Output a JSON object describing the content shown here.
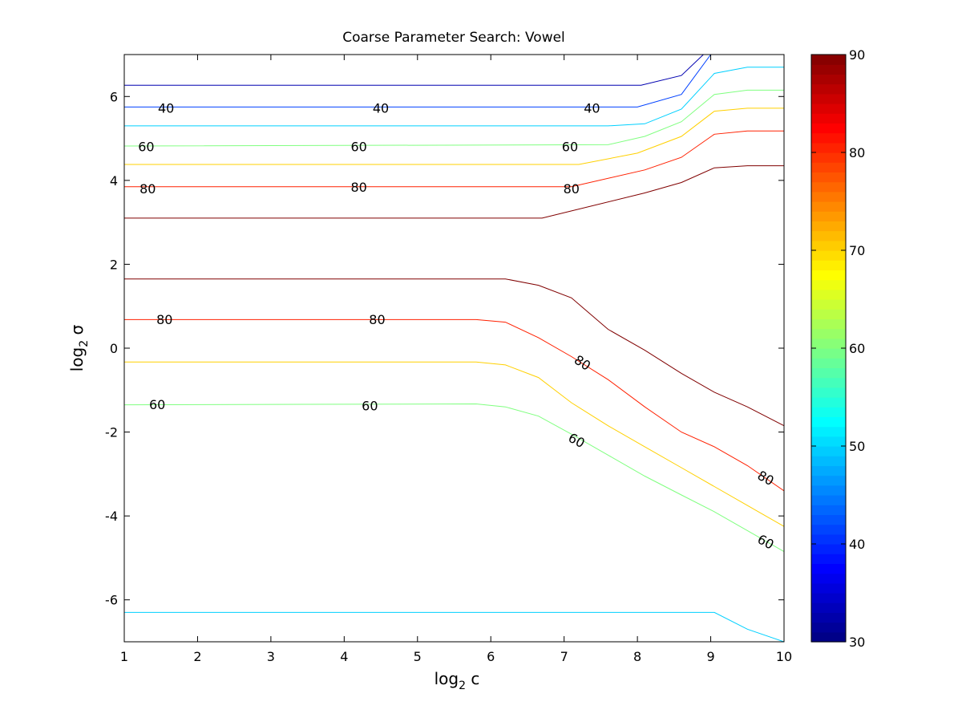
{
  "chart_data": {
    "type": "contour",
    "title": "Coarse Parameter Search: Vowel",
    "xlabel": {
      "text": "log",
      "sub": "2",
      "tail": " c"
    },
    "ylabel": {
      "text": "log",
      "sub": "2",
      "tail": " σ"
    },
    "xlim": [
      1,
      10
    ],
    "ylim": [
      -7,
      7
    ],
    "x_ticks": [
      1,
      2,
      3,
      4,
      5,
      6,
      7,
      8,
      9,
      10
    ],
    "y_ticks": [
      -6,
      -4,
      -2,
      0,
      2,
      4,
      6
    ],
    "grid": false,
    "colormap": "jet",
    "colorbar": {
      "range": [
        30,
        90
      ],
      "ticks": [
        30,
        40,
        50,
        60,
        70,
        80,
        90
      ],
      "levels": 60
    },
    "contours": [
      {
        "level": 37,
        "color": "#0000b0",
        "points": [
          [
            1,
            6.27
          ],
          [
            8.05,
            6.27
          ],
          [
            8.6,
            6.5
          ],
          [
            8.9,
            7.0
          ]
        ]
      },
      {
        "level": 40,
        "color": "#0040ff",
        "points": [
          [
            1,
            5.75
          ],
          [
            8.0,
            5.75
          ],
          [
            8.6,
            6.05
          ],
          [
            9.0,
            7.0
          ]
        ]
      },
      {
        "level": 50,
        "color": "#00d0ff",
        "points": [
          [
            1,
            5.3
          ],
          [
            7.6,
            5.3
          ],
          [
            8.1,
            5.35
          ],
          [
            8.6,
            5.7
          ],
          [
            9.05,
            6.55
          ],
          [
            9.5,
            6.7
          ],
          [
            10,
            6.7
          ]
        ]
      },
      {
        "level": 60,
        "color": "#80ff80",
        "points": [
          [
            1,
            4.82
          ],
          [
            7.6,
            4.85
          ],
          [
            8.1,
            5.05
          ],
          [
            8.6,
            5.4
          ],
          [
            9.05,
            6.05
          ],
          [
            9.5,
            6.15
          ],
          [
            10,
            6.15
          ]
        ]
      },
      {
        "level": 70,
        "color": "#ffd000",
        "points": [
          [
            1,
            4.38
          ],
          [
            7.2,
            4.38
          ],
          [
            8.0,
            4.65
          ],
          [
            8.6,
            5.05
          ],
          [
            9.05,
            5.65
          ],
          [
            9.5,
            5.72
          ],
          [
            10,
            5.72
          ]
        ]
      },
      {
        "level": 80,
        "color": "#ff2000",
        "points": [
          [
            1,
            3.85
          ],
          [
            7.1,
            3.85
          ],
          [
            8.1,
            4.25
          ],
          [
            8.6,
            4.55
          ],
          [
            9.05,
            5.1
          ],
          [
            9.5,
            5.18
          ],
          [
            10,
            5.18
          ]
        ]
      },
      {
        "level": 87,
        "color": "#800000",
        "points": [
          [
            1,
            3.1
          ],
          [
            6.7,
            3.1
          ],
          [
            8.1,
            3.7
          ],
          [
            8.6,
            3.95
          ],
          [
            9.05,
            4.3
          ],
          [
            9.5,
            4.35
          ],
          [
            10,
            4.35
          ]
        ]
      },
      {
        "level": 87,
        "color": "#800000",
        "points": [
          [
            1,
            1.65
          ],
          [
            6.2,
            1.65
          ],
          [
            6.65,
            1.5
          ],
          [
            7.1,
            1.2
          ],
          [
            7.6,
            0.45
          ],
          [
            8.1,
            -0.05
          ],
          [
            8.6,
            -0.6
          ],
          [
            9.05,
            -1.05
          ],
          [
            9.5,
            -1.4
          ],
          [
            10,
            -1.85
          ]
        ]
      },
      {
        "level": 80,
        "color": "#ff2000",
        "points": [
          [
            1,
            0.68
          ],
          [
            5.8,
            0.68
          ],
          [
            6.2,
            0.62
          ],
          [
            6.65,
            0.25
          ],
          [
            7.1,
            -0.2
          ],
          [
            7.6,
            -0.75
          ],
          [
            8.1,
            -1.4
          ],
          [
            8.6,
            -2.0
          ],
          [
            9.05,
            -2.35
          ],
          [
            9.5,
            -2.8
          ],
          [
            10,
            -3.4
          ]
        ]
      },
      {
        "level": 70,
        "color": "#ffd000",
        "points": [
          [
            1,
            -0.33
          ],
          [
            5.8,
            -0.33
          ],
          [
            6.2,
            -0.4
          ],
          [
            6.65,
            -0.7
          ],
          [
            7.1,
            -1.3
          ],
          [
            7.6,
            -1.85
          ],
          [
            8.1,
            -2.35
          ],
          [
            8.6,
            -2.85
          ],
          [
            9.05,
            -3.3
          ],
          [
            9.5,
            -3.75
          ],
          [
            10,
            -4.25
          ]
        ]
      },
      {
        "level": 60,
        "color": "#80ff80",
        "points": [
          [
            1,
            -1.35
          ],
          [
            5.8,
            -1.33
          ],
          [
            6.2,
            -1.4
          ],
          [
            6.65,
            -1.62
          ],
          [
            7.1,
            -2.05
          ],
          [
            7.6,
            -2.55
          ],
          [
            8.1,
            -3.05
          ],
          [
            8.6,
            -3.5
          ],
          [
            9.05,
            -3.9
          ],
          [
            9.5,
            -4.35
          ],
          [
            10,
            -4.85
          ]
        ]
      },
      {
        "level": 50,
        "color": "#00d0ff",
        "points": [
          [
            1,
            -6.3
          ],
          [
            9.05,
            -6.3
          ],
          [
            9.5,
            -6.7
          ],
          [
            10,
            -7.0
          ]
        ]
      }
    ],
    "contour_labels": [
      {
        "text": "40",
        "x": 1.57,
        "y": 5.72,
        "angle": 0
      },
      {
        "text": "40",
        "x": 4.5,
        "y": 5.72,
        "angle": 0
      },
      {
        "text": "40",
        "x": 7.38,
        "y": 5.72,
        "angle": 0
      },
      {
        "text": "60",
        "x": 1.3,
        "y": 4.8,
        "angle": 0
      },
      {
        "text": "60",
        "x": 4.2,
        "y": 4.8,
        "angle": 0
      },
      {
        "text": "60",
        "x": 7.08,
        "y": 4.8,
        "angle": 0
      },
      {
        "text": "80",
        "x": 1.32,
        "y": 3.8,
        "angle": 0
      },
      {
        "text": "80",
        "x": 4.2,
        "y": 3.83,
        "angle": 0
      },
      {
        "text": "80",
        "x": 7.1,
        "y": 3.8,
        "angle": 0
      },
      {
        "text": "80",
        "x": 1.55,
        "y": 0.68,
        "angle": 0
      },
      {
        "text": "80",
        "x": 4.45,
        "y": 0.68,
        "angle": 0
      },
      {
        "text": "80",
        "x": 7.25,
        "y": -0.35,
        "angle": 33
      },
      {
        "text": "60",
        "x": 1.45,
        "y": -1.35,
        "angle": 0
      },
      {
        "text": "60",
        "x": 4.35,
        "y": -1.38,
        "angle": 0
      },
      {
        "text": "60",
        "x": 7.17,
        "y": -2.2,
        "angle": 28
      },
      {
        "text": "80",
        "x": 9.75,
        "y": -3.1,
        "angle": 28
      },
      {
        "text": "60",
        "x": 9.75,
        "y": -4.62,
        "angle": 28
      }
    ]
  }
}
